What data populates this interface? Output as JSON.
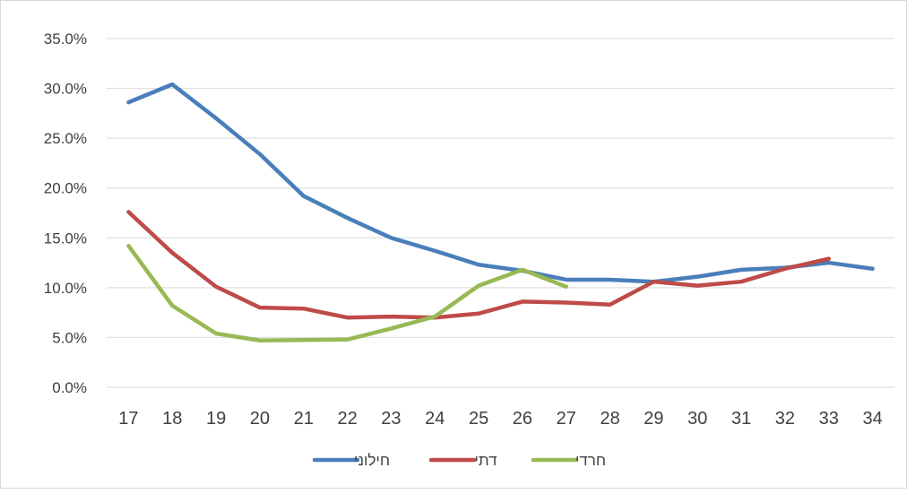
{
  "chart_data": {
    "type": "line",
    "title": "",
    "xlabel": "",
    "ylabel": "",
    "categories": [
      "17",
      "18",
      "19",
      "20",
      "21",
      "22",
      "23",
      "24",
      "25",
      "26",
      "27",
      "28",
      "29",
      "30",
      "31",
      "32",
      "33",
      "34"
    ],
    "ylim": [
      0,
      35
    ],
    "yticks": [
      0,
      5,
      10,
      15,
      20,
      25,
      30,
      35
    ],
    "ytick_labels": [
      "0.0%",
      "5.0%",
      "10.0%",
      "15.0%",
      "20.0%",
      "25.0%",
      "30.0%",
      "35.0%"
    ],
    "grid": "horizontal",
    "legend_position": "bottom",
    "series": [
      {
        "name": "חילוני",
        "color": "#4a7ebb",
        "values": [
          28.6,
          30.4,
          27.0,
          23.4,
          19.2,
          17.0,
          15.0,
          13.7,
          12.3,
          11.7,
          10.8,
          10.8,
          10.6,
          11.1,
          11.8,
          12.0,
          12.5,
          11.9
        ]
      },
      {
        "name": "דתי",
        "color": "#be4b48",
        "values": [
          17.6,
          13.5,
          10.1,
          8.0,
          7.9,
          7.0,
          7.1,
          7.0,
          7.4,
          8.6,
          8.5,
          8.3,
          10.6,
          10.2,
          10.6,
          11.9,
          12.9,
          null
        ]
      },
      {
        "name": "חרדי",
        "color": "#98b954",
        "values": [
          14.2,
          8.2,
          5.4,
          4.7,
          4.75,
          4.8,
          5.9,
          7.1,
          10.2,
          11.8,
          10.1,
          null,
          null,
          null,
          null,
          null,
          null,
          null
        ]
      }
    ]
  }
}
